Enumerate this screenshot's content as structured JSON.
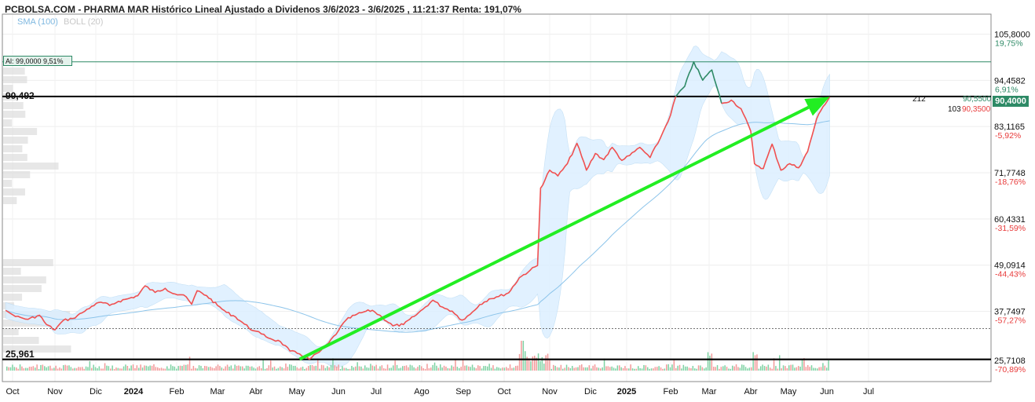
{
  "title": "PCBOLSA.COM - PHARMA MAR Histórico Lineal Ajustado a Dividenos 3/6/2023 - 3/6/2025 , 11:21:37 Renta: 191,07%",
  "indicators": {
    "sma": "SMA (100)",
    "boll": "BOLL (20)"
  },
  "alert_label": "Al: 99,0000 9,51%",
  "levels": {
    "resistance": "90,492",
    "support": "25,961"
  },
  "last_price_tag": "90,4000",
  "annotations": {
    "volume_left": "212",
    "volume_right": "103",
    "price_green": "90,5500",
    "price_red": "90,3500"
  },
  "colors": {
    "price_up": "#2e8a66",
    "price_down": "#f05050",
    "trend_arrow": "#22ee22",
    "bollinger_fill": "#dcefff",
    "sma_line": "#8cc4ea",
    "pct_positive": "#2e8a66",
    "pct_negative": "#e83a3a"
  },
  "chart_data": {
    "type": "line",
    "title": "PCBOLSA.COM - PHARMA MAR Histórico Lineal Ajustado a Dividenos 3/6/2023 - 3/6/2025 , 11:21:37 Renta: 191,07%",
    "xlabel": "",
    "ylabel": "",
    "x_ticks": [
      "Oct",
      "Nov",
      "Dic",
      "2024",
      "Feb",
      "Mar",
      "Abr",
      "May",
      "Jun",
      "Jul",
      "Ago",
      "Sep",
      "Oct",
      "Nov",
      "Dic",
      "2025",
      "Feb",
      "Mar",
      "Abr",
      "May",
      "Jun",
      "Jul"
    ],
    "x_ticks_bold": [
      "2024",
      "2025"
    ],
    "y_ticks": [
      {
        "value": 105.8,
        "label": "105,8000",
        "pct": "19,75%"
      },
      {
        "value": 94.4582,
        "label": "94,4582",
        "pct": "6,91%"
      },
      {
        "value": 83.1165,
        "label": "83,1165",
        "pct": "-5,92%"
      },
      {
        "value": 71.7748,
        "label": "71,7748",
        "pct": "-18,76%"
      },
      {
        "value": 60.4331,
        "label": "60,4331",
        "pct": "-31,59%"
      },
      {
        "value": 49.0914,
        "label": "49,0914",
        "pct": "-44,43%"
      },
      {
        "value": 37.7497,
        "label": "37,7497",
        "pct": "-57,27%"
      },
      {
        "value": 25.7108,
        "label": "25,7108",
        "pct": "-70,89%"
      }
    ],
    "series": [
      {
        "points": [
          [
            "Sep 26 2023",
            38.0
          ],
          [
            "Oct 3 2023",
            36.5
          ],
          [
            "Oct 12 2023",
            35.8
          ],
          [
            "Oct 20 2023",
            36.8
          ],
          [
            "Oct 25 2023",
            34.5
          ],
          [
            "Nov 1 2023",
            33.2
          ],
          [
            "Nov 7 2023",
            35.5
          ],
          [
            "Nov 14 2023",
            36.0
          ],
          [
            "Nov 21 2023",
            37.4
          ],
          [
            "Nov 28 2023",
            39.0
          ],
          [
            "Dic 5 2023",
            40.0
          ],
          [
            "Dic 12 2023",
            39.2
          ],
          [
            "Dic 19 2023",
            40.2
          ],
          [
            "Dic 26 2023",
            40.8
          ],
          [
            "Ene 4 2024",
            41.6
          ],
          [
            "Ene 9 2024",
            44.0
          ],
          [
            "Ene 16 2024",
            42.4
          ],
          [
            "Ene 23 2024",
            43.4
          ],
          [
            "Ene 30 2024",
            42.0
          ],
          [
            "Feb 6 2024",
            41.8
          ],
          [
            "Feb 12 2024",
            39.5
          ],
          [
            "Feb 16 2024",
            42.8
          ],
          [
            "Feb 23 2024",
            41.6
          ],
          [
            "Mar 1 2024",
            39.2
          ],
          [
            "Mar 8 2024",
            37.5
          ],
          [
            "Mar 15 2024",
            36.4
          ],
          [
            "Mar 22 2024",
            34.6
          ],
          [
            "Mar 29 2024",
            33.0
          ],
          [
            "Abr 5 2024",
            32.2
          ],
          [
            "Abr 12 2024",
            31.0
          ],
          [
            "Abr 19 2024",
            30.3
          ],
          [
            "Abr 26 2024",
            28.0
          ],
          [
            "May 3 2024",
            27.3
          ],
          [
            "May 10 2024",
            26.0
          ],
          [
            "May 17 2024",
            27.7
          ],
          [
            "May 24 2024",
            30.0
          ],
          [
            "May 31 2024",
            33.0
          ],
          [
            "Jun 7 2024",
            35.6
          ],
          [
            "Jun 14 2024",
            36.8
          ],
          [
            "Jun 21 2024",
            37.6
          ],
          [
            "Jun 28 2024",
            38.0
          ],
          [
            "Jul 5 2024",
            36.3
          ],
          [
            "Jul 12 2024",
            34.2
          ],
          [
            "Jul 19 2024",
            34.5
          ],
          [
            "Jul 26 2024",
            36.5
          ],
          [
            "Ago 2 2024",
            38.3
          ],
          [
            "Ago 9 2024",
            40.5
          ],
          [
            "Ago 16 2024",
            38.8
          ],
          [
            "Ago 23 2024",
            37.8
          ],
          [
            "Ago 30 2024",
            35.6
          ],
          [
            "Sep 6 2024",
            37.0
          ],
          [
            "Sep 13 2024",
            39.4
          ],
          [
            "Sep 20 2024",
            40.8
          ],
          [
            "Sep 27 2024",
            41.4
          ],
          [
            "Oct 4 2024",
            42.3
          ],
          [
            "Oct 11 2024",
            46.0
          ],
          [
            "Oct 18 2024",
            47.8
          ],
          [
            "Oct 23 2024",
            49.0
          ],
          [
            "Oct 25 2024",
            68.0
          ],
          [
            "Oct 31 2024",
            72.4
          ],
          [
            "Nov 7 2024",
            71.0
          ],
          [
            "Nov 14 2024",
            74.0
          ],
          [
            "Nov 21 2024",
            79.0
          ],
          [
            "Nov 28 2024",
            72.4
          ],
          [
            "Dic 5 2024",
            76.5
          ],
          [
            "Dic 12 2024",
            75.0
          ],
          [
            "Dic 19 2024",
            78.0
          ],
          [
            "Dic 27 2024",
            74.8
          ],
          [
            "Ene 3 2025",
            76.0
          ],
          [
            "Ene 10 2025",
            78.0
          ],
          [
            "Ene 17 2025",
            75.5
          ],
          [
            "Ene 24 2025",
            80.3
          ],
          [
            "Ene 31 2025",
            86.0
          ],
          [
            "Feb 5 2025",
            90.5
          ],
          [
            "Feb 12 2025",
            93.0
          ],
          [
            "Feb 19 2025",
            99.0
          ],
          [
            "Feb 26 2025",
            94.5
          ],
          [
            "Mar 3 2025",
            97.0
          ],
          [
            "Mar 10 2025",
            88.8
          ],
          [
            "Mar 17 2025",
            89.6
          ],
          [
            "Mar 24 2025",
            87.5
          ],
          [
            "Mar 31 2025",
            82.0
          ],
          [
            "Abr 4 2025",
            74.0
          ],
          [
            "Abr 11 2025",
            72.8
          ],
          [
            "Abr 18 2025",
            78.8
          ],
          [
            "Abr 25 2025",
            72.4
          ],
          [
            "May 2 2025",
            74.0
          ],
          [
            "May 9 2025",
            73.0
          ],
          [
            "May 16 2025",
            77.0
          ],
          [
            "May 23 2025",
            85.0
          ],
          [
            "May 28 2025",
            88.0
          ],
          [
            "Jun 3 2025",
            90.4
          ]
        ]
      }
    ],
    "trend_line": {
      "from": [
        "May 3 2024",
        26.0
      ],
      "to": [
        "Jun 3 2025",
        90.4
      ]
    },
    "horizontal_lines": [
      {
        "value": 99.0,
        "label": "Al: 99,0000 9,51%"
      },
      {
        "value": 90.492,
        "label": "90,492"
      },
      {
        "value": 25.961,
        "label": "25,961"
      },
      {
        "value": 33.5,
        "label": ""
      }
    ],
    "last_price": 90.4,
    "grid": true,
    "legend": "top-left"
  }
}
